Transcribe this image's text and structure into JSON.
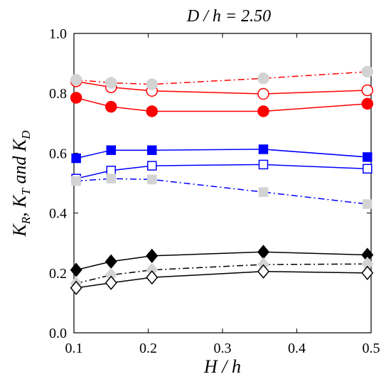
{
  "chart_data": {
    "type": "line",
    "title_italic": "D / h",
    "title_value": "= 2.50",
    "xlabel": "H / h",
    "ylabel": {
      "k1": "K",
      "s1": "R",
      "sep1": ", ",
      "k2": "K",
      "s2": "T",
      "sep2": " and ",
      "k3": "K",
      "s3": "D"
    },
    "xlim": [
      0.1,
      0.5
    ],
    "ylim": [
      0.0,
      1.0
    ],
    "xticks": [
      "0.1",
      "0.2",
      "0.3",
      "0.4",
      "0.5"
    ],
    "yticks": [
      "0.0",
      "0.2",
      "0.4",
      "0.6",
      "0.8",
      "1.0"
    ],
    "grid": false,
    "series": [
      {
        "color": "#ff0000",
        "line": "solid",
        "marker": "circle",
        "filled": true,
        "x": [
          0.103,
          0.15,
          0.205,
          0.355,
          0.495
        ],
        "y": [
          0.785,
          0.755,
          0.74,
          0.74,
          0.765
        ]
      },
      {
        "color": "#ff0000",
        "line": "solid",
        "marker": "circle",
        "filled": false,
        "x": [
          0.103,
          0.15,
          0.205,
          0.355,
          0.495
        ],
        "y": [
          0.84,
          0.82,
          0.808,
          0.798,
          0.81
        ]
      },
      {
        "color": "#ff0000",
        "line": "dashdot",
        "marker": "circle",
        "filled": true,
        "marker_color": "#d3d3d3",
        "x": [
          0.103,
          0.15,
          0.205,
          0.355,
          0.495
        ],
        "y": [
          0.845,
          0.835,
          0.83,
          0.85,
          0.872
        ]
      },
      {
        "color": "#0000ff",
        "line": "solid",
        "marker": "square",
        "filled": true,
        "x": [
          0.103,
          0.15,
          0.205,
          0.355,
          0.495
        ],
        "y": [
          0.583,
          0.61,
          0.61,
          0.613,
          0.587
        ]
      },
      {
        "color": "#0000ff",
        "line": "solid",
        "marker": "square",
        "filled": false,
        "x": [
          0.103,
          0.15,
          0.205,
          0.355,
          0.495
        ],
        "y": [
          0.515,
          0.542,
          0.558,
          0.562,
          0.548
        ]
      },
      {
        "color": "#0000ff",
        "line": "dashdot",
        "marker": "square",
        "filled": true,
        "marker_color": "#d3d3d3",
        "x": [
          0.103,
          0.15,
          0.205,
          0.355,
          0.495
        ],
        "y": [
          0.507,
          0.515,
          0.512,
          0.47,
          0.43
        ]
      },
      {
        "color": "#000000",
        "line": "solid",
        "marker": "diamond",
        "filled": true,
        "x": [
          0.103,
          0.15,
          0.205,
          0.355,
          0.495
        ],
        "y": [
          0.21,
          0.238,
          0.257,
          0.27,
          0.26
        ]
      },
      {
        "color": "#000000",
        "line": "dashdot",
        "marker": "diamond",
        "filled": true,
        "marker_color": "#d3d3d3",
        "x": [
          0.103,
          0.15,
          0.205,
          0.355,
          0.495
        ],
        "y": [
          0.165,
          0.193,
          0.21,
          0.228,
          0.23
        ]
      },
      {
        "color": "#000000",
        "line": "solid",
        "marker": "diamond",
        "filled": false,
        "x": [
          0.103,
          0.15,
          0.205,
          0.355,
          0.495
        ],
        "y": [
          0.15,
          0.167,
          0.185,
          0.205,
          0.2
        ]
      }
    ]
  }
}
